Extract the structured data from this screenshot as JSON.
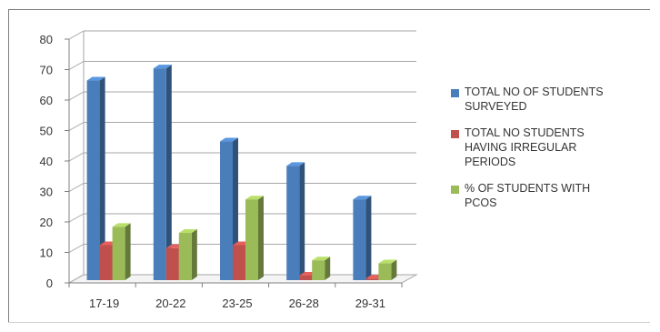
{
  "chart_data": {
    "type": "bar",
    "title": "",
    "xlabel": "",
    "ylabel": "",
    "categories": [
      "17-19",
      "20-22",
      "23-25",
      "26-28",
      "29-31"
    ],
    "series": [
      {
        "name": "TOTAL NO OF STUDENTS\nSURVEYED",
        "color": "#4a7ebb",
        "values": [
          67,
          71,
          47,
          39,
          28
        ]
      },
      {
        "name": "TOTAL NO  STUDENTS\nHAVING IRREGULAR\nPERIODS",
        "color": "#c0504d",
        "values": [
          13,
          12,
          13,
          3,
          2
        ]
      },
      {
        "name": "% OF STUDENTS  WITH\nPCOS",
        "color": "#9bbb59",
        "values": [
          19,
          17,
          28,
          8,
          7
        ]
      }
    ],
    "ylim": [
      0,
      80
    ],
    "yticks": [
      "0",
      "10",
      "20",
      "30",
      "40",
      "50",
      "60",
      "70",
      "80"
    ],
    "grid": true,
    "style_3d": true,
    "legend_position": "right"
  }
}
